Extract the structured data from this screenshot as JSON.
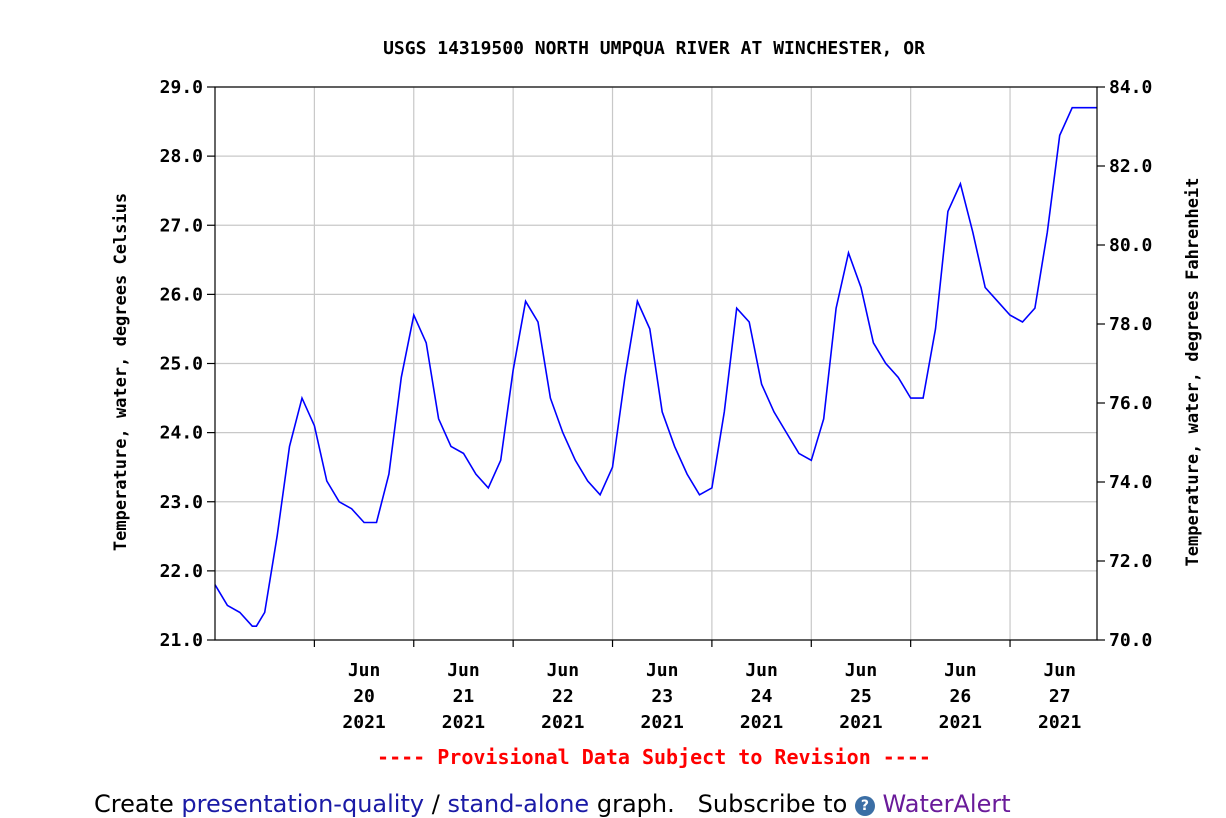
{
  "chart_data": {
    "type": "line",
    "title": "USGS 14319500 NORTH UMPQUA RIVER AT WINCHESTER, OR",
    "ylabel": "Temperature, water, degrees Celsius",
    "ylabel_right": "Temperature, water, degrees Fahrenheit",
    "ylim": [
      21.0,
      29.0
    ],
    "ylim_right": [
      70.0,
      84.0
    ],
    "yticks": [
      "21.0",
      "22.0",
      "23.0",
      "24.0",
      "25.0",
      "26.0",
      "27.0",
      "28.0",
      "29.0"
    ],
    "yticks_right": [
      "70.0",
      "72.0",
      "74.0",
      "76.0",
      "78.0",
      "80.0",
      "82.0",
      "84.0"
    ],
    "xlim": [
      "2021-06-19 00:00",
      "2021-06-27 21:00"
    ],
    "xticks": [
      {
        "line1": "Jun",
        "line2": "20",
        "line3": "2021"
      },
      {
        "line1": "Jun",
        "line2": "21",
        "line3": "2021"
      },
      {
        "line1": "Jun",
        "line2": "22",
        "line3": "2021"
      },
      {
        "line1": "Jun",
        "line2": "23",
        "line3": "2021"
      },
      {
        "line1": "Jun",
        "line2": "24",
        "line3": "2021"
      },
      {
        "line1": "Jun",
        "line2": "25",
        "line3": "2021"
      },
      {
        "line1": "Jun",
        "line2": "26",
        "line3": "2021"
      },
      {
        "line1": "Jun",
        "line2": "27",
        "line3": "2021"
      }
    ],
    "grid": true,
    "note": "---- Provisional Data Subject to Revision ----",
    "line_color": "#0000ff",
    "note_color": "#ff0000",
    "series": [
      {
        "x": [
          "2021-06-19 00:00",
          "2021-06-19 03:00",
          "2021-06-19 06:00",
          "2021-06-19 09:00",
          "2021-06-19 10:00",
          "2021-06-19 12:00",
          "2021-06-19 15:00",
          "2021-06-19 18:00",
          "2021-06-19 21:00",
          "2021-06-20 00:00",
          "2021-06-20 03:00",
          "2021-06-20 06:00",
          "2021-06-20 09:00",
          "2021-06-20 12:00",
          "2021-06-20 15:00",
          "2021-06-20 18:00",
          "2021-06-20 21:00",
          "2021-06-21 00:00",
          "2021-06-21 03:00",
          "2021-06-21 06:00",
          "2021-06-21 09:00",
          "2021-06-21 12:00",
          "2021-06-21 15:00",
          "2021-06-21 18:00",
          "2021-06-21 21:00",
          "2021-06-22 00:00",
          "2021-06-22 03:00",
          "2021-06-22 06:00",
          "2021-06-22 09:00",
          "2021-06-22 12:00",
          "2021-06-22 15:00",
          "2021-06-22 18:00",
          "2021-06-22 21:00",
          "2021-06-23 00:00",
          "2021-06-23 03:00",
          "2021-06-23 06:00",
          "2021-06-23 09:00",
          "2021-06-23 12:00",
          "2021-06-23 15:00",
          "2021-06-23 18:00",
          "2021-06-23 21:00",
          "2021-06-24 00:00",
          "2021-06-24 03:00",
          "2021-06-24 06:00",
          "2021-06-24 09:00",
          "2021-06-24 12:00",
          "2021-06-24 15:00",
          "2021-06-24 18:00",
          "2021-06-24 21:00",
          "2021-06-25 00:00",
          "2021-06-25 03:00",
          "2021-06-25 06:00",
          "2021-06-25 09:00",
          "2021-06-25 12:00",
          "2021-06-25 15:00",
          "2021-06-25 18:00",
          "2021-06-25 21:00",
          "2021-06-26 00:00",
          "2021-06-26 03:00",
          "2021-06-26 06:00",
          "2021-06-26 09:00",
          "2021-06-26 12:00",
          "2021-06-26 15:00",
          "2021-06-26 18:00",
          "2021-06-26 21:00",
          "2021-06-27 00:00",
          "2021-06-27 03:00",
          "2021-06-27 06:00",
          "2021-06-27 09:00",
          "2021-06-27 12:00",
          "2021-06-27 15:00",
          "2021-06-27 18:00",
          "2021-06-27 21:00"
        ],
        "y": [
          21.8,
          21.5,
          21.4,
          21.2,
          21.2,
          21.4,
          22.5,
          23.8,
          24.5,
          24.1,
          23.3,
          23.0,
          22.9,
          22.7,
          22.7,
          23.4,
          24.8,
          25.7,
          25.3,
          24.2,
          23.8,
          23.7,
          23.4,
          23.2,
          23.6,
          24.9,
          25.9,
          25.6,
          24.5,
          24.0,
          23.6,
          23.3,
          23.1,
          23.5,
          24.8,
          25.9,
          25.5,
          24.3,
          23.8,
          23.4,
          23.1,
          23.2,
          24.3,
          25.8,
          25.6,
          24.7,
          24.3,
          24.0,
          23.7,
          23.6,
          24.2,
          25.8,
          26.6,
          26.1,
          25.3,
          25.0,
          24.8,
          24.5,
          24.5,
          25.5,
          27.2,
          27.6,
          26.9,
          26.1,
          25.9,
          25.7,
          25.6,
          25.8,
          26.9,
          28.3,
          28.7,
          28.7,
          28.7
        ]
      }
    ]
  },
  "footer": {
    "create": "Create",
    "presentation_link": "presentation-quality",
    "slash": "/",
    "standalone_link": "stand-alone",
    "graph_text": "graph.",
    "subscribe": "Subscribe to",
    "wateralert_link": "WaterAlert"
  }
}
